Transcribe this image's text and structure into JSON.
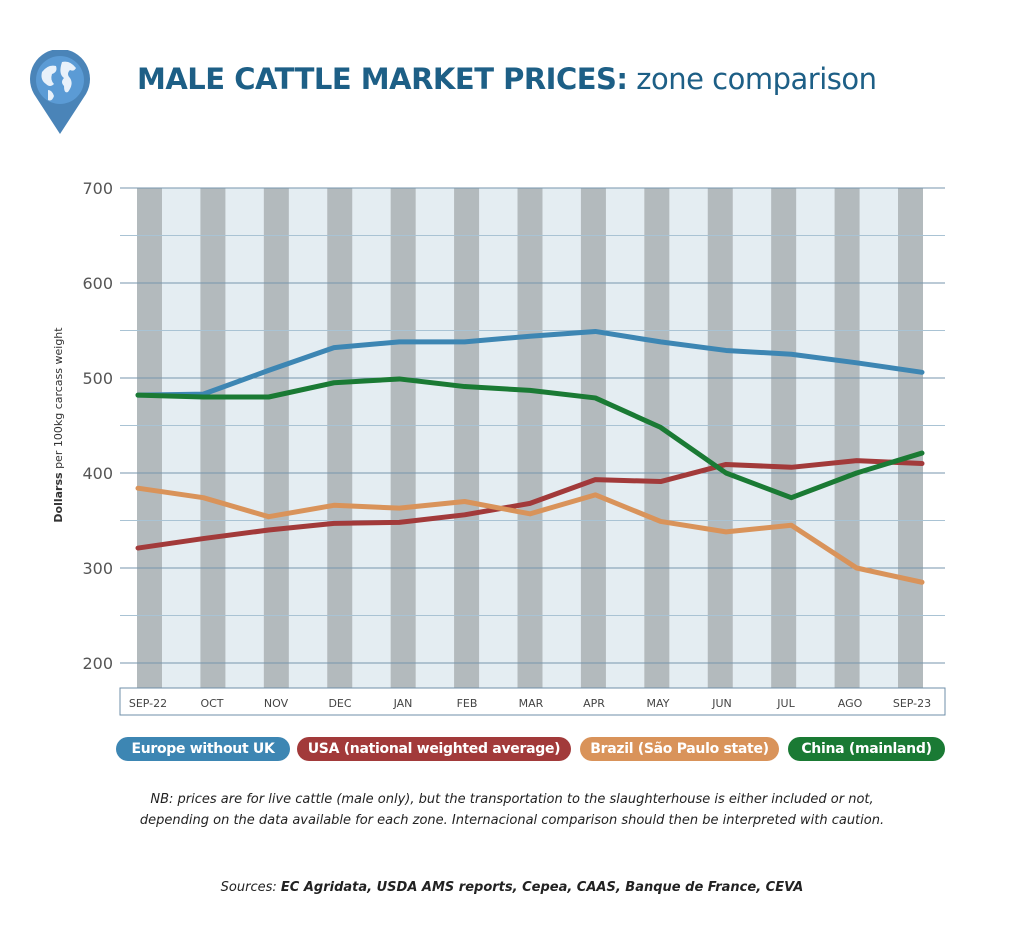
{
  "header": {
    "title_bold": "MALE CATTLE MARKET PRICES:",
    "title_rest": " zone comparison",
    "logo_icon": "globe-pin-icon"
  },
  "chart_data": {
    "type": "line",
    "title": "MALE CATTLE MARKET PRICES: zone comparison",
    "xlabel": "",
    "ylabel": "Dollarss per 100kg carcass weight",
    "ylabel_bold": "Dollarss",
    "ylabel_rest": " per 100kg carcass weight",
    "ylim": [
      200,
      700
    ],
    "yticks": [
      200,
      300,
      400,
      500,
      600,
      700
    ],
    "grid": true,
    "legend_placement": "bottom",
    "categories": [
      "SEP-22",
      "OCT",
      "NOV",
      "DEC",
      "JAN",
      "FEB",
      "MAR",
      "APR",
      "MAY",
      "JUN",
      "JUL",
      "AGO",
      "SEP-23"
    ],
    "series": [
      {
        "name": "Europe without UK",
        "color": "#3d86b3",
        "values": [
          482,
          483,
          508,
          532,
          538,
          538,
          544,
          549,
          538,
          529,
          525,
          516,
          506
        ]
      },
      {
        "name": "USA (national weighted average)",
        "color": "#a23a3a",
        "values": [
          321,
          331,
          340,
          347,
          348,
          356,
          368,
          393,
          391,
          409,
          406,
          413,
          410
        ]
      },
      {
        "name": "Brazil (São Paulo state)",
        "color": "#d9935a",
        "values": [
          384,
          374,
          354,
          366,
          363,
          370,
          357,
          377,
          349,
          338,
          345,
          300,
          285
        ]
      },
      {
        "name": "China (mainland)",
        "color": "#1a7a34",
        "values": [
          482,
          480,
          480,
          495,
          499,
          491,
          487,
          479,
          448,
          400,
          374,
          400,
          421
        ]
      }
    ]
  },
  "notes": {
    "line1": "NB: prices are for live cattle (male only), but the transportation to the slaughterhouse is either included or not,",
    "line2": "depending on the data available for each zone. Internacional comparison should then be interpreted with caution."
  },
  "sources": {
    "label": "Sources: ",
    "list": "EC Agridata, USDA AMS reports, Cepea, CAAS, Banque de France, CEVA"
  }
}
